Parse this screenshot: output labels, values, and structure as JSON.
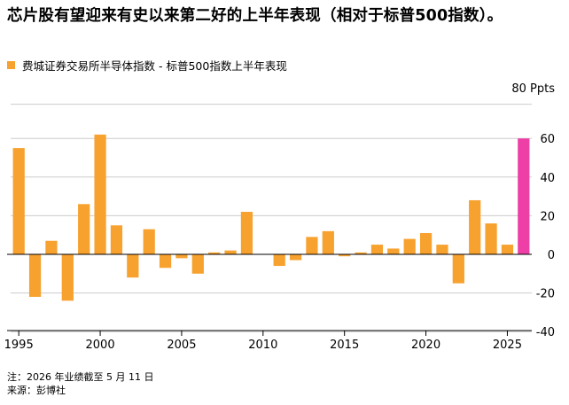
{
  "title": "芯片股有望迎来有史以来第二好的上半年表现（相对于标普500指数）。",
  "legend": {
    "label": "费城证券交易所半导体指数 - 标普500指数上半年表现"
  },
  "footer": {
    "note": "注：2026 年业绩截至 5 月 11 日",
    "source": "来源：彭博社"
  },
  "colors": {
    "bar": "#F7A12E",
    "highlight": "#EE3FA7",
    "grid": "#CCCCCC"
  },
  "chart_data": {
    "type": "bar",
    "title": "芯片股有望迎来有史以来第二好的上半年表现（相对于标普500指数）。",
    "unit_label": "80 Ppts",
    "ylim": [
      -45,
      80
    ],
    "yticks": [
      -40,
      -20,
      0,
      20,
      40,
      60
    ],
    "xticks": [
      1995,
      2000,
      2005,
      2010,
      2015,
      2020,
      2025
    ],
    "grid": true,
    "series": [
      {
        "name": "费城证券交易所半导体指数 - 标普500指数上半年表现",
        "x": [
          1995,
          1996,
          1997,
          1998,
          1999,
          2000,
          2001,
          2002,
          2003,
          2004,
          2005,
          2006,
          2007,
          2008,
          2009,
          2010,
          2011,
          2012,
          2013,
          2014,
          2015,
          2016,
          2017,
          2018,
          2019,
          2020,
          2021,
          2022,
          2023,
          2024,
          2025,
          2026
        ],
        "values": [
          55,
          -22,
          7,
          -24,
          26,
          62,
          15,
          -12,
          13,
          -7,
          -2,
          -10,
          1,
          2,
          22,
          0,
          -6,
          -3,
          9,
          12,
          -1,
          1,
          5,
          3,
          8,
          11,
          5,
          -15,
          28,
          16,
          5,
          60
        ]
      }
    ],
    "highlight_x": 2026
  }
}
